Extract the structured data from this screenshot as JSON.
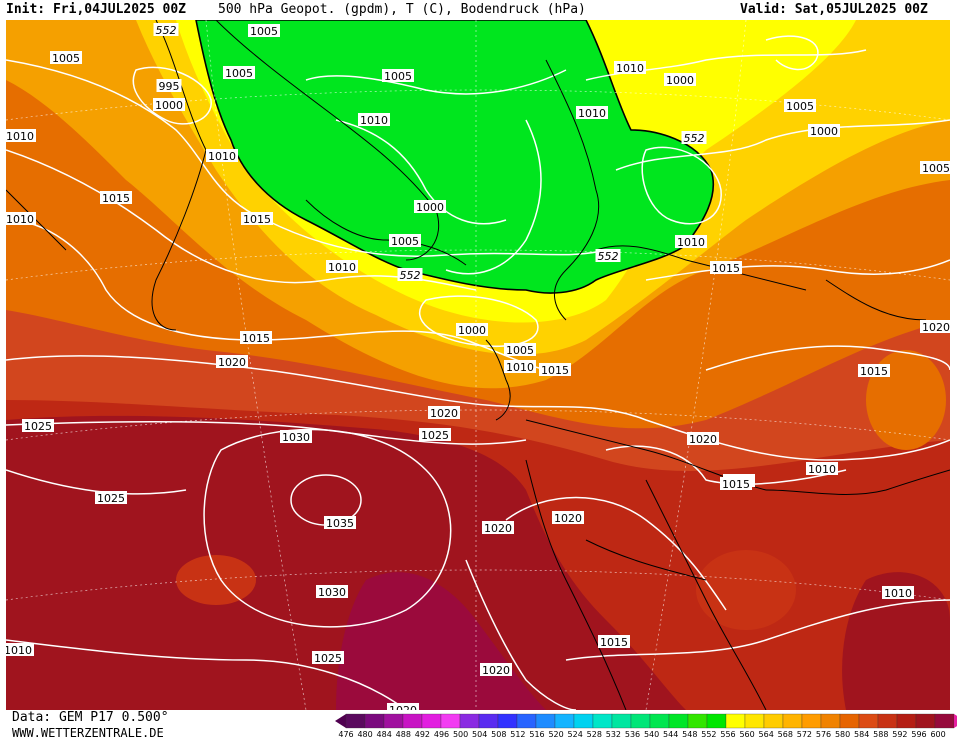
{
  "header": {
    "init": "Init: Fri,04JUL2025 00Z",
    "title": "500 hPa Geopot. (gpdm), T (C), Bodendruck (hPa)",
    "valid": "Valid: Sat,05JUL2025 00Z"
  },
  "footer": {
    "source": "Data: GEM P17 0.500°",
    "website": "WWW.WETTERZENTRALE.DE"
  },
  "colorbar": {
    "labels": [
      "476",
      "480",
      "484",
      "488",
      "492",
      "496",
      "500",
      "504",
      "508",
      "512",
      "516",
      "520",
      "524",
      "528",
      "532",
      "536",
      "540",
      "544",
      "548",
      "552",
      "556",
      "560",
      "564",
      "568",
      "572",
      "576",
      "580",
      "584",
      "588",
      "592",
      "596",
      "600"
    ],
    "colors": [
      "#5a0a5e",
      "#7a0a7e",
      "#a0109f",
      "#c814c4",
      "#e21ee0",
      "#f23cf2",
      "#8a2be2",
      "#5a2cf0",
      "#3232ff",
      "#2864ff",
      "#1e8cff",
      "#14b4ff",
      "#00d2f0",
      "#00e6c8",
      "#00e6a0",
      "#00e678",
      "#00e650",
      "#00e628",
      "#32e600",
      "#00e600",
      "#ffff00",
      "#ffe600",
      "#ffcc00",
      "#ffb400",
      "#ff9c00",
      "#f08200",
      "#e66400",
      "#dc4b14",
      "#c83214",
      "#b41e14",
      "#a0141e",
      "#960a3c"
    ],
    "low_color": "#500050",
    "high_color": "#e61ea0"
  },
  "map": {
    "isobar_labels": [
      "552",
      "1005",
      "1005",
      "995",
      "1000",
      "1005",
      "1005",
      "1010",
      "1000",
      "1005",
      "1010",
      "1010",
      "1000",
      "552",
      "1015",
      "1010",
      "1005",
      "1015",
      "1000",
      "1010",
      "1010",
      "1015",
      "1005",
      "552",
      "552",
      "1010",
      "1015",
      "1000",
      "1015",
      "1010",
      "1020",
      "1005",
      "1010",
      "1015",
      "1020",
      "1025",
      "1030",
      "1025",
      "1020",
      "1025",
      "1035",
      "1020",
      "1020",
      "1015",
      "1010",
      "1030",
      "1025",
      "1020",
      "1015",
      "1020",
      "1010",
      "1020",
      "1010",
      "1015"
    ],
    "colors": {
      "green": "#00e61e",
      "yellow": "#ffff00",
      "yellow_orange": "#ffd200",
      "orange": "#f5a000",
      "dark_orange": "#e66e00",
      "red_orange": "#d2461e",
      "red": "#be2814",
      "dark_red": "#a0141e",
      "magenta_red": "#9b0a3c"
    }
  }
}
